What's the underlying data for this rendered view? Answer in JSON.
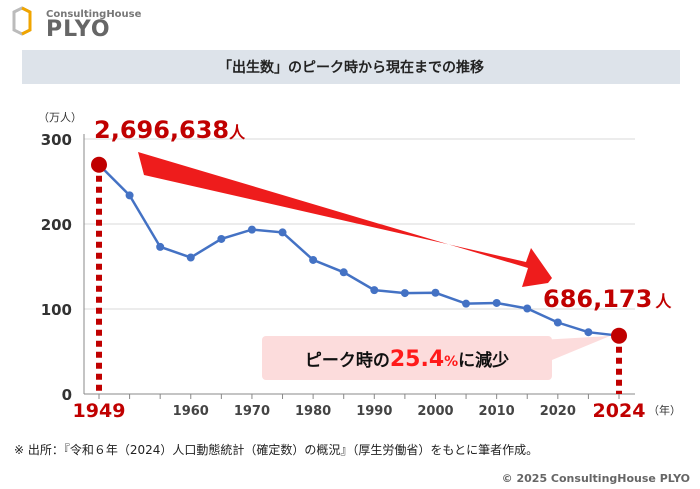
{
  "logo": {
    "sub": "ConsultingHouse",
    "main": "PLYO"
  },
  "chart_data": {
    "type": "line",
    "title": "「出生数」のピーク時から現在までの推移",
    "ylabel": "（万人）",
    "xlabel": "（年）",
    "ylim": [
      0,
      300
    ],
    "yticks": [
      "0",
      "100",
      "200",
      "300"
    ],
    "grid": true,
    "categories": [
      1949,
      1950,
      1955,
      1960,
      1965,
      1970,
      1975,
      1980,
      1985,
      1990,
      1995,
      2000,
      2005,
      2010,
      2015,
      2020,
      2023,
      2024
    ],
    "xtick_labels": [
      "1960",
      "1970",
      "1980",
      "1990",
      "2000",
      "2010",
      "2020"
    ],
    "highlight_labels": {
      "start": "1949",
      "end": "2024"
    },
    "series": [
      {
        "values": [
          269.7,
          233.7,
          173.1,
          160.6,
          182.4,
          193.4,
          190.1,
          157.7,
          143.2,
          122.2,
          118.7,
          119.1,
          106.3,
          107.1,
          100.6,
          84.1,
          72.7,
          68.6
        ]
      }
    ],
    "annotations": {
      "start_value": "2,696,638",
      "end_value": "686,173",
      "person_unit": "人",
      "callout_prefix": "ピーク時の",
      "callout_pct": "25.4",
      "callout_pct_unit": "%",
      "callout_suffix": "に減少"
    },
    "colors": {
      "line": "#4472c4",
      "highlight": "#c00000",
      "arrow": "#ee1c1c",
      "callout_bg": "#fcdcdc",
      "title_bg": "#dde3ea"
    }
  },
  "footer": {
    "source": "※ 出所：『令和６年（2024）人口動態統計（確定数）の概況』（厚生労働省）をもとに筆者作成。",
    "copyright": "© 2025 ConsultingHouse PLYO"
  }
}
